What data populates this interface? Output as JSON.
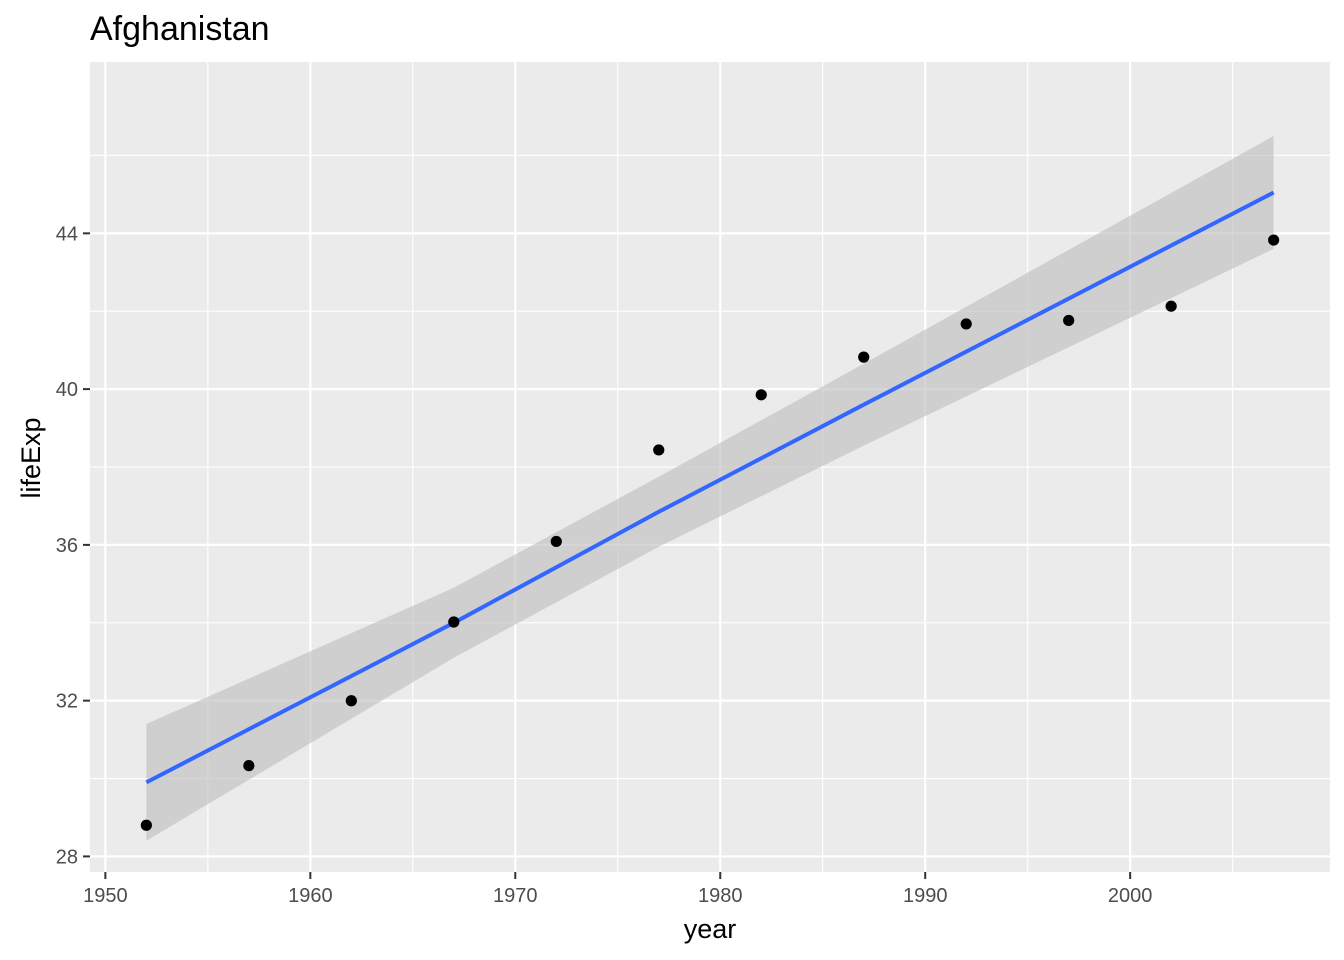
{
  "chart_data": {
    "type": "scatter",
    "title": "Afghanistan",
    "xlabel": "year",
    "ylabel": "lifeExp",
    "xlim": [
      1949.25,
      2009.75
    ],
    "ylim": [
      27.6,
      48.4
    ],
    "x_ticks": [
      1950,
      1960,
      1970,
      1980,
      1990,
      2000
    ],
    "y_ticks": [
      28,
      32,
      36,
      40,
      44
    ],
    "grid": true,
    "legend": "none",
    "colors": {
      "panel": "#ebebeb",
      "grid": "#ffffff",
      "points": "#000000",
      "fit_line": "#3366ff",
      "confidence_band": "#c0c0c0"
    },
    "series": [
      {
        "x": [
          1952,
          1957,
          1962,
          1967,
          1972,
          1977,
          1982,
          1987,
          1992,
          1997,
          2002,
          2007
        ],
        "y": [
          28.801,
          30.332,
          31.997,
          34.02,
          36.088,
          38.438,
          39.854,
          40.822,
          41.674,
          41.763,
          42.129,
          43.828
        ]
      }
    ],
    "fit": {
      "method": "lm",
      "x": [
        1952,
        1967,
        1977,
        1987,
        2007
      ],
      "y": [
        29.9,
        34.0,
        36.85,
        39.6,
        45.05
      ],
      "ci_upper": [
        31.4,
        34.9,
        37.75,
        40.65,
        46.5
      ],
      "ci_lower": [
        28.4,
        33.1,
        35.95,
        38.55,
        43.6
      ]
    }
  }
}
